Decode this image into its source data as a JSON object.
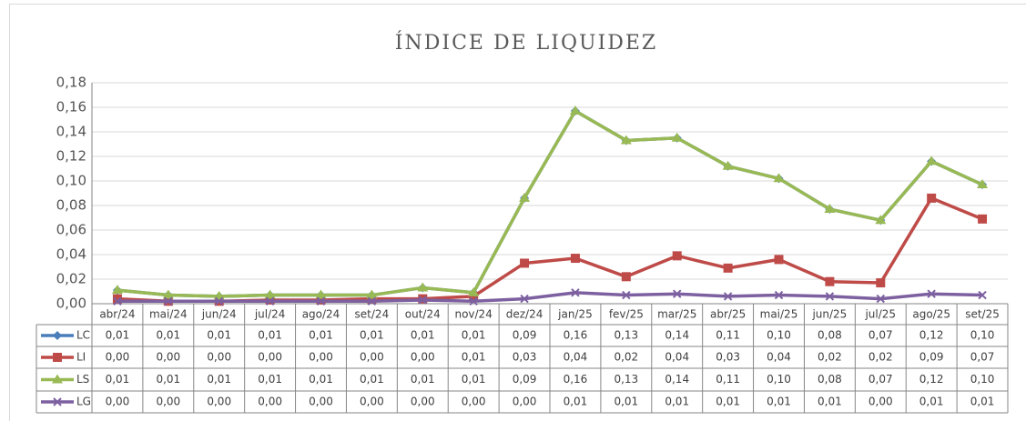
{
  "chart_data": {
    "type": "line",
    "title": "ÍNDICE DE LIQUIDEZ",
    "categories": [
      "abr/24",
      "mai/24",
      "jun/24",
      "jul/24",
      "ago/24",
      "set/24",
      "out/24",
      "nov/24",
      "dez/24",
      "jan/25",
      "fev/25",
      "mar/25",
      "abr/25",
      "mai/25",
      "jun/25",
      "jul/25",
      "ago/25",
      "set/25"
    ],
    "ylim": [
      0,
      0.18
    ],
    "yticks": [
      {
        "value": 0,
        "label": "0,00"
      },
      {
        "value": 0.02,
        "label": "0,02"
      },
      {
        "value": 0.04,
        "label": "0,04"
      },
      {
        "value": 0.06,
        "label": "0,06"
      },
      {
        "value": 0.08,
        "label": "0,08"
      },
      {
        "value": 0.1,
        "label": "0,10"
      },
      {
        "value": 0.12,
        "label": "0,12"
      },
      {
        "value": 0.14,
        "label": "0,14"
      },
      {
        "value": 0.16,
        "label": "0,16"
      },
      {
        "value": 0.18,
        "label": "0,18"
      }
    ],
    "series": [
      {
        "name": "LC",
        "color": "#4a7ebb",
        "marker": "diamond",
        "values": [
          0.011,
          0.007,
          0.006,
          0.007,
          0.007,
          0.007,
          0.013,
          0.009,
          0.086,
          0.157,
          0.133,
          0.135,
          0.112,
          0.102,
          0.077,
          0.068,
          0.116,
          0.097
        ],
        "value_labels": [
          "0,01",
          "0,01",
          "0,01",
          "0,01",
          "0,01",
          "0,01",
          "0,01",
          "0,01",
          "0,09",
          "0,16",
          "0,13",
          "0,14",
          "0,11",
          "0,10",
          "0,08",
          "0,07",
          "0,12",
          "0,10"
        ]
      },
      {
        "name": "LI",
        "color": "#be4b48",
        "marker": "square",
        "values": [
          0.004,
          0.002,
          0.002,
          0.003,
          0.003,
          0.004,
          0.004,
          0.006,
          0.033,
          0.037,
          0.022,
          0.039,
          0.029,
          0.036,
          0.018,
          0.017,
          0.086,
          0.069
        ],
        "value_labels": [
          "0,00",
          "0,00",
          "0,00",
          "0,00",
          "0,00",
          "0,00",
          "0,00",
          "0,01",
          "0,03",
          "0,04",
          "0,02",
          "0,04",
          "0,03",
          "0,04",
          "0,02",
          "0,02",
          "0,09",
          "0,07"
        ]
      },
      {
        "name": "LS",
        "color": "#98b954",
        "marker": "triangle",
        "values": [
          0.011,
          0.007,
          0.006,
          0.007,
          0.007,
          0.007,
          0.013,
          0.009,
          0.086,
          0.157,
          0.133,
          0.135,
          0.112,
          0.102,
          0.077,
          0.068,
          0.116,
          0.097
        ],
        "value_labels": [
          "0,01",
          "0,01",
          "0,01",
          "0,01",
          "0,01",
          "0,01",
          "0,01",
          "0,01",
          "0,09",
          "0,16",
          "0,13",
          "0,14",
          "0,11",
          "0,10",
          "0,08",
          "0,07",
          "0,12",
          "0,10"
        ]
      },
      {
        "name": "LG",
        "color": "#7d60a0",
        "marker": "x",
        "values": [
          0.002,
          0.002,
          0.002,
          0.002,
          0.002,
          0.002,
          0.003,
          0.002,
          0.004,
          0.009,
          0.007,
          0.008,
          0.006,
          0.007,
          0.006,
          0.004,
          0.008,
          0.007
        ],
        "value_labels": [
          "0,00",
          "0,00",
          "0,00",
          "0,00",
          "0,00",
          "0,00",
          "0,00",
          "0,00",
          "0,00",
          "0,01",
          "0,01",
          "0,01",
          "0,01",
          "0,01",
          "0,01",
          "0,00",
          "0,01",
          "0,01"
        ]
      }
    ]
  }
}
